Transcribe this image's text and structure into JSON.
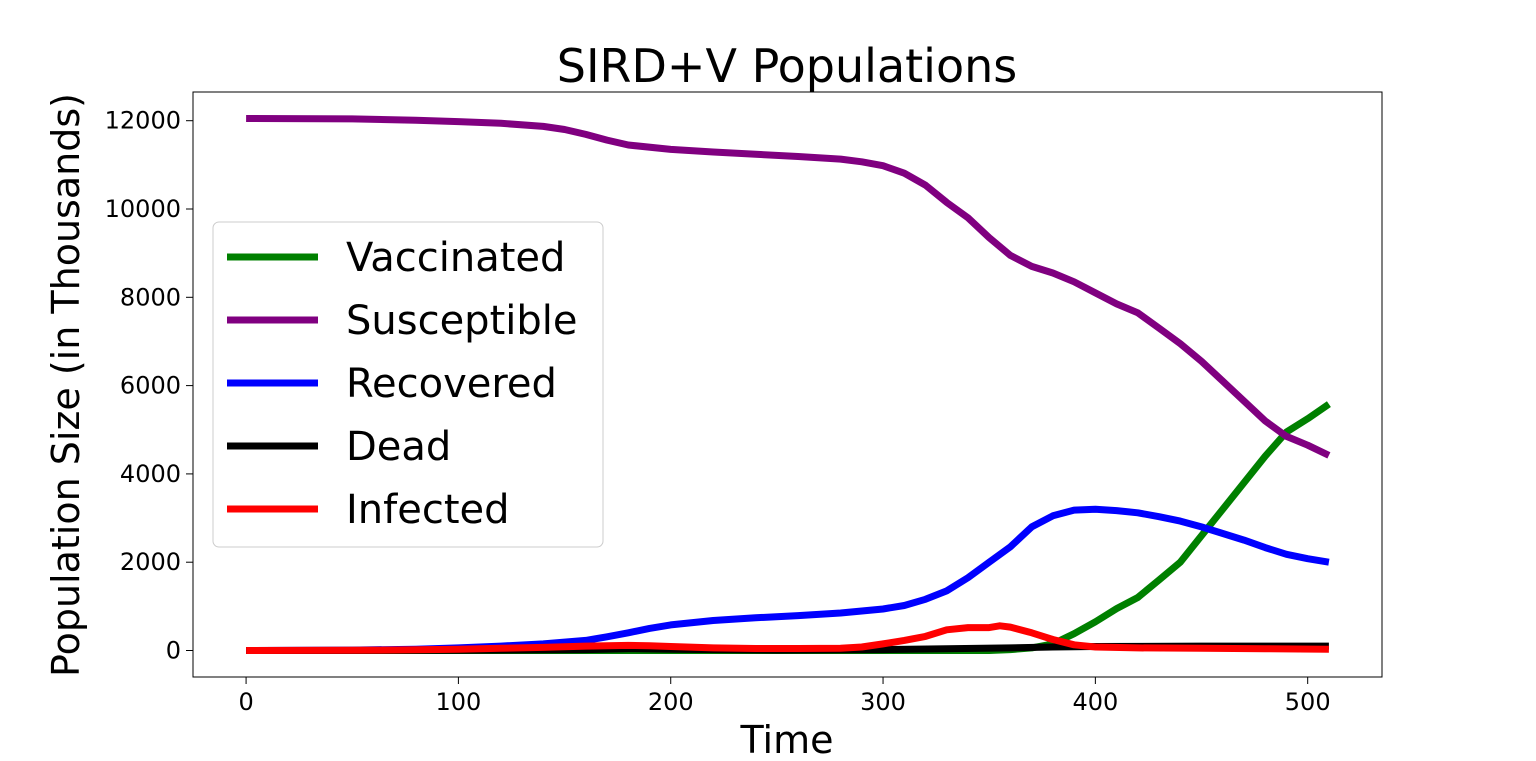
{
  "chart_data": {
    "type": "line",
    "title": "SIRD+V Populations",
    "xlabel": "Time",
    "ylabel": "Population Size (in Thousands)",
    "xlim": [
      -25,
      535
    ],
    "ylim": [
      -600,
      12650
    ],
    "xticks": [
      0,
      100,
      200,
      300,
      400,
      500
    ],
    "yticks": [
      0,
      2000,
      4000,
      6000,
      8000,
      10000,
      12000
    ],
    "grid": false,
    "legend_position": "center-left",
    "series": [
      {
        "name": "Vaccinated",
        "color": "#008000",
        "points": [
          [
            0,
            0
          ],
          [
            100,
            0
          ],
          [
            200,
            0
          ],
          [
            300,
            0
          ],
          [
            350,
            0
          ],
          [
            360,
            20
          ],
          [
            370,
            60
          ],
          [
            380,
            150
          ],
          [
            390,
            380
          ],
          [
            400,
            650
          ],
          [
            410,
            950
          ],
          [
            420,
            1200
          ],
          [
            430,
            1600
          ],
          [
            440,
            2000
          ],
          [
            450,
            2600
          ],
          [
            460,
            3200
          ],
          [
            470,
            3800
          ],
          [
            480,
            4400
          ],
          [
            490,
            4950
          ],
          [
            500,
            5250
          ],
          [
            510,
            5580
          ]
        ]
      },
      {
        "name": "Susceptible",
        "color": "#800080",
        "points": [
          [
            0,
            12050
          ],
          [
            50,
            12040
          ],
          [
            80,
            12010
          ],
          [
            100,
            11980
          ],
          [
            120,
            11940
          ],
          [
            140,
            11870
          ],
          [
            150,
            11800
          ],
          [
            160,
            11690
          ],
          [
            170,
            11560
          ],
          [
            180,
            11450
          ],
          [
            200,
            11350
          ],
          [
            220,
            11290
          ],
          [
            240,
            11240
          ],
          [
            260,
            11190
          ],
          [
            280,
            11130
          ],
          [
            290,
            11070
          ],
          [
            300,
            10980
          ],
          [
            310,
            10810
          ],
          [
            320,
            10540
          ],
          [
            330,
            10150
          ],
          [
            340,
            9800
          ],
          [
            350,
            9350
          ],
          [
            360,
            8950
          ],
          [
            370,
            8700
          ],
          [
            380,
            8550
          ],
          [
            390,
            8350
          ],
          [
            400,
            8100
          ],
          [
            410,
            7850
          ],
          [
            420,
            7650
          ],
          [
            430,
            7300
          ],
          [
            440,
            6950
          ],
          [
            450,
            6550
          ],
          [
            460,
            6100
          ],
          [
            470,
            5650
          ],
          [
            480,
            5200
          ],
          [
            490,
            4850
          ],
          [
            500,
            4650
          ],
          [
            510,
            4420
          ]
        ]
      },
      {
        "name": "Recovered",
        "color": "#0000ff",
        "points": [
          [
            0,
            0
          ],
          [
            50,
            10
          ],
          [
            80,
            30
          ],
          [
            100,
            60
          ],
          [
            120,
            100
          ],
          [
            140,
            150
          ],
          [
            160,
            230
          ],
          [
            170,
            310
          ],
          [
            180,
            400
          ],
          [
            190,
            500
          ],
          [
            200,
            580
          ],
          [
            220,
            680
          ],
          [
            240,
            740
          ],
          [
            260,
            790
          ],
          [
            280,
            850
          ],
          [
            300,
            940
          ],
          [
            310,
            1020
          ],
          [
            320,
            1160
          ],
          [
            330,
            1350
          ],
          [
            340,
            1650
          ],
          [
            350,
            2000
          ],
          [
            360,
            2350
          ],
          [
            370,
            2800
          ],
          [
            380,
            3050
          ],
          [
            390,
            3180
          ],
          [
            400,
            3200
          ],
          [
            410,
            3170
          ],
          [
            420,
            3120
          ],
          [
            430,
            3030
          ],
          [
            440,
            2930
          ],
          [
            450,
            2800
          ],
          [
            460,
            2650
          ],
          [
            470,
            2500
          ],
          [
            480,
            2330
          ],
          [
            490,
            2180
          ],
          [
            500,
            2080
          ],
          [
            510,
            2000
          ]
        ]
      },
      {
        "name": "Dead",
        "color": "#000000",
        "points": [
          [
            0,
            0
          ],
          [
            100,
            5
          ],
          [
            160,
            20
          ],
          [
            180,
            40
          ],
          [
            200,
            30
          ],
          [
            250,
            10
          ],
          [
            300,
            20
          ],
          [
            330,
            40
          ],
          [
            360,
            60
          ],
          [
            380,
            80
          ],
          [
            400,
            90
          ],
          [
            450,
            100
          ],
          [
            510,
            100
          ]
        ]
      },
      {
        "name": "Infected",
        "color": "#ff0000",
        "points": [
          [
            0,
            0
          ],
          [
            50,
            5
          ],
          [
            80,
            15
          ],
          [
            100,
            30
          ],
          [
            120,
            50
          ],
          [
            140,
            70
          ],
          [
            160,
            100
          ],
          [
            170,
            110
          ],
          [
            180,
            115
          ],
          [
            190,
            110
          ],
          [
            200,
            90
          ],
          [
            220,
            60
          ],
          [
            240,
            45
          ],
          [
            260,
            45
          ],
          [
            280,
            50
          ],
          [
            290,
            80
          ],
          [
            300,
            150
          ],
          [
            310,
            230
          ],
          [
            320,
            320
          ],
          [
            330,
            470
          ],
          [
            340,
            520
          ],
          [
            350,
            520
          ],
          [
            355,
            560
          ],
          [
            360,
            530
          ],
          [
            370,
            400
          ],
          [
            380,
            250
          ],
          [
            390,
            130
          ],
          [
            400,
            80
          ],
          [
            420,
            60
          ],
          [
            450,
            50
          ],
          [
            480,
            40
          ],
          [
            510,
            30
          ]
        ]
      }
    ]
  }
}
